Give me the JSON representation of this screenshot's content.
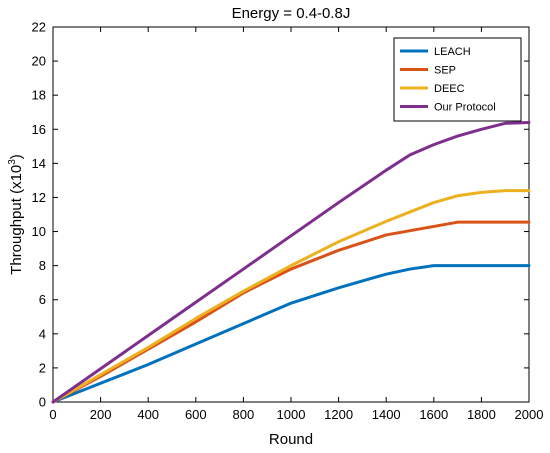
{
  "chart_data": {
    "type": "line",
    "title": "Energy = 0.4-0.8J",
    "xlabel": "Round",
    "ylabel": "Throughput (x10",
    "ylabel_superscript": "3",
    "ylabel_suffix": ")",
    "xlim": [
      0,
      2000
    ],
    "ylim": [
      0,
      22
    ],
    "xticks": [
      0,
      200,
      400,
      600,
      800,
      1000,
      1200,
      1400,
      1600,
      1800,
      2000
    ],
    "yticks": [
      0,
      2,
      4,
      6,
      8,
      10,
      12,
      14,
      16,
      18,
      20,
      22
    ],
    "legend_position": "top-right",
    "grid": false,
    "series": [
      {
        "name": "LEACH",
        "color": "#0072BD",
        "points": [
          [
            0,
            0
          ],
          [
            200,
            1.1
          ],
          [
            400,
            2.2
          ],
          [
            600,
            3.4
          ],
          [
            800,
            4.6
          ],
          [
            1000,
            5.8
          ],
          [
            1200,
            6.7
          ],
          [
            1400,
            7.5
          ],
          [
            1500,
            7.8
          ],
          [
            1600,
            8.0
          ],
          [
            1800,
            8.0
          ],
          [
            2000,
            8.0
          ]
        ]
      },
      {
        "name": "SEP",
        "color": "#D95319",
        "points": [
          [
            0,
            0
          ],
          [
            200,
            1.5
          ],
          [
            400,
            3.1
          ],
          [
            600,
            4.7
          ],
          [
            800,
            6.4
          ],
          [
            1000,
            7.8
          ],
          [
            1200,
            8.9
          ],
          [
            1400,
            9.8
          ],
          [
            1600,
            10.3
          ],
          [
            1700,
            10.55
          ],
          [
            1800,
            10.55
          ],
          [
            2000,
            10.55
          ]
        ]
      },
      {
        "name": "DEEC",
        "color": "#EDB120",
        "points": [
          [
            0,
            0
          ],
          [
            200,
            1.6
          ],
          [
            400,
            3.2
          ],
          [
            600,
            4.9
          ],
          [
            800,
            6.5
          ],
          [
            1000,
            8.0
          ],
          [
            1200,
            9.4
          ],
          [
            1400,
            10.6
          ],
          [
            1600,
            11.7
          ],
          [
            1700,
            12.1
          ],
          [
            1800,
            12.3
          ],
          [
            1900,
            12.4
          ],
          [
            2000,
            12.4
          ]
        ]
      },
      {
        "name": "Our Protocol",
        "color": "#7E2F8E",
        "points": [
          [
            0,
            0
          ],
          [
            200,
            1.95
          ],
          [
            400,
            3.9
          ],
          [
            600,
            5.85
          ],
          [
            800,
            7.8
          ],
          [
            1000,
            9.75
          ],
          [
            1200,
            11.7
          ],
          [
            1400,
            13.6
          ],
          [
            1500,
            14.5
          ],
          [
            1600,
            15.1
          ],
          [
            1700,
            15.6
          ],
          [
            1800,
            16.0
          ],
          [
            1900,
            16.35
          ],
          [
            2000,
            16.4
          ]
        ]
      }
    ]
  }
}
